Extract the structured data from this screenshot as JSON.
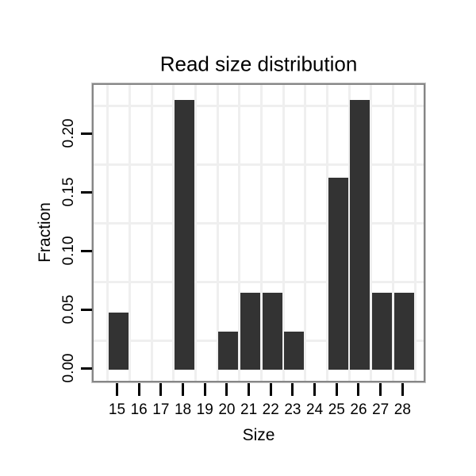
{
  "chart_data": {
    "type": "bar",
    "title": "Read size distribution",
    "xlabel": "Size",
    "ylabel": "Fraction",
    "categories": [
      "15",
      "16",
      "17",
      "18",
      "19",
      "20",
      "21",
      "22",
      "23",
      "24",
      "25",
      "26",
      "27",
      "28"
    ],
    "values": [
      0.049,
      0,
      0,
      0.23,
      0,
      0.033,
      0.066,
      0.066,
      0.033,
      0,
      0.164,
      0.23,
      0.066,
      0.066
    ],
    "y_ticks": [
      {
        "value": 0.0,
        "label": "0.00"
      },
      {
        "value": 0.05,
        "label": "0.05"
      },
      {
        "value": 0.1,
        "label": "0.10"
      },
      {
        "value": 0.15,
        "label": "0.15"
      },
      {
        "value": 0.2,
        "label": "0.20"
      }
    ],
    "ylim": [
      0,
      0.242
    ],
    "grid": "minor gridlines only, between ticks and between categories",
    "legend": "none",
    "bar_color": "#333333",
    "gridline_color": "#efefef",
    "panel_border_color": "#868686",
    "tick_color": "#000000",
    "text_color": "#000000"
  }
}
